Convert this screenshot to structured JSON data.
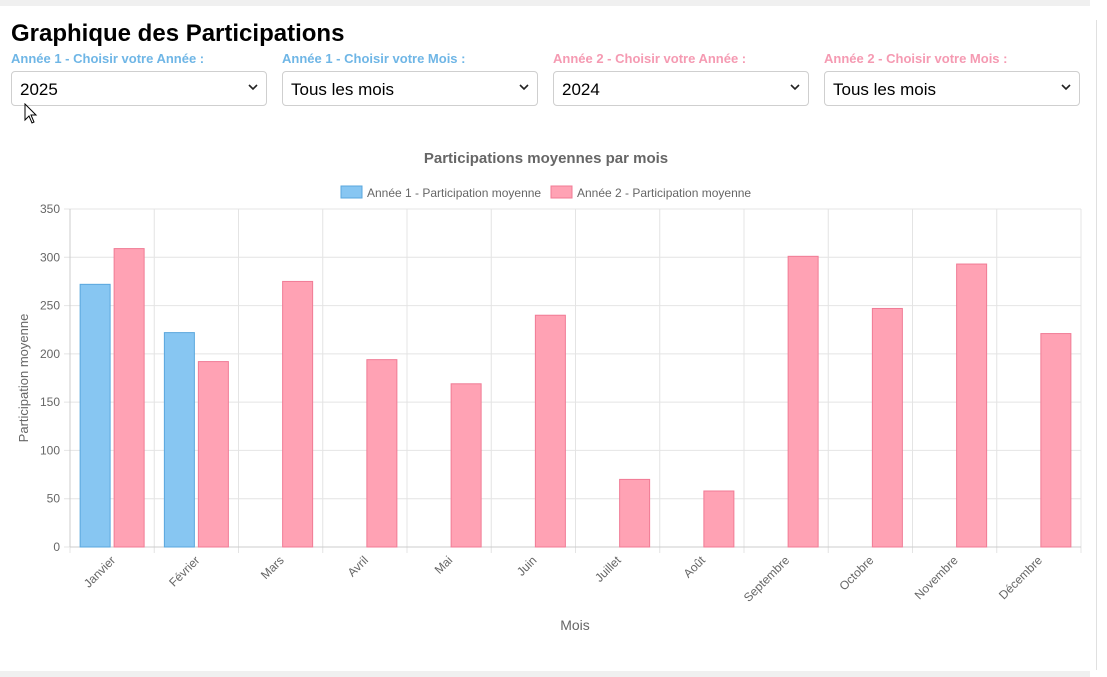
{
  "page": {
    "title": "Graphique des Participations"
  },
  "filters": [
    {
      "label": "Année 1 - Choisir votre Année :",
      "value": "2025",
      "color": "#6fb6e6"
    },
    {
      "label": "Année 1 - Choisir votre Mois :",
      "value": "Tous les mois",
      "color": "#6fb6e6"
    },
    {
      "label": "Année 2 - Choisir votre Année :",
      "value": "2024",
      "color": "#f59ab2"
    },
    {
      "label": "Année 2 - Choisir votre Mois :",
      "value": "Tous les mois",
      "color": "#f59ab2"
    }
  ],
  "chart_data": {
    "type": "bar",
    "title": "Participations moyennes par mois",
    "xlabel": "Mois",
    "ylabel": "Participation moyenne",
    "ylim": [
      0,
      350
    ],
    "yticks": [
      0,
      50,
      100,
      150,
      200,
      250,
      300,
      350
    ],
    "grid": true,
    "legend_position": "top",
    "categories": [
      "Janvier",
      "Février",
      "Mars",
      "Avril",
      "Mai",
      "Juin",
      "Juillet",
      "Août",
      "Septembre",
      "Octobre",
      "Novembre",
      "Décembre"
    ],
    "series": [
      {
        "name": "Année 1 - Participation moyenne",
        "values": [
          272,
          222,
          null,
          null,
          null,
          null,
          null,
          null,
          null,
          null,
          null,
          null
        ],
        "color": "#87c6f2",
        "border": "#5aa7dd"
      },
      {
        "name": "Année 2 - Participation moyenne",
        "values": [
          309,
          192,
          275,
          194,
          169,
          240,
          70,
          58,
          301,
          247,
          293,
          221
        ],
        "color": "#ffa2b4",
        "border": "#f07b95"
      }
    ]
  }
}
